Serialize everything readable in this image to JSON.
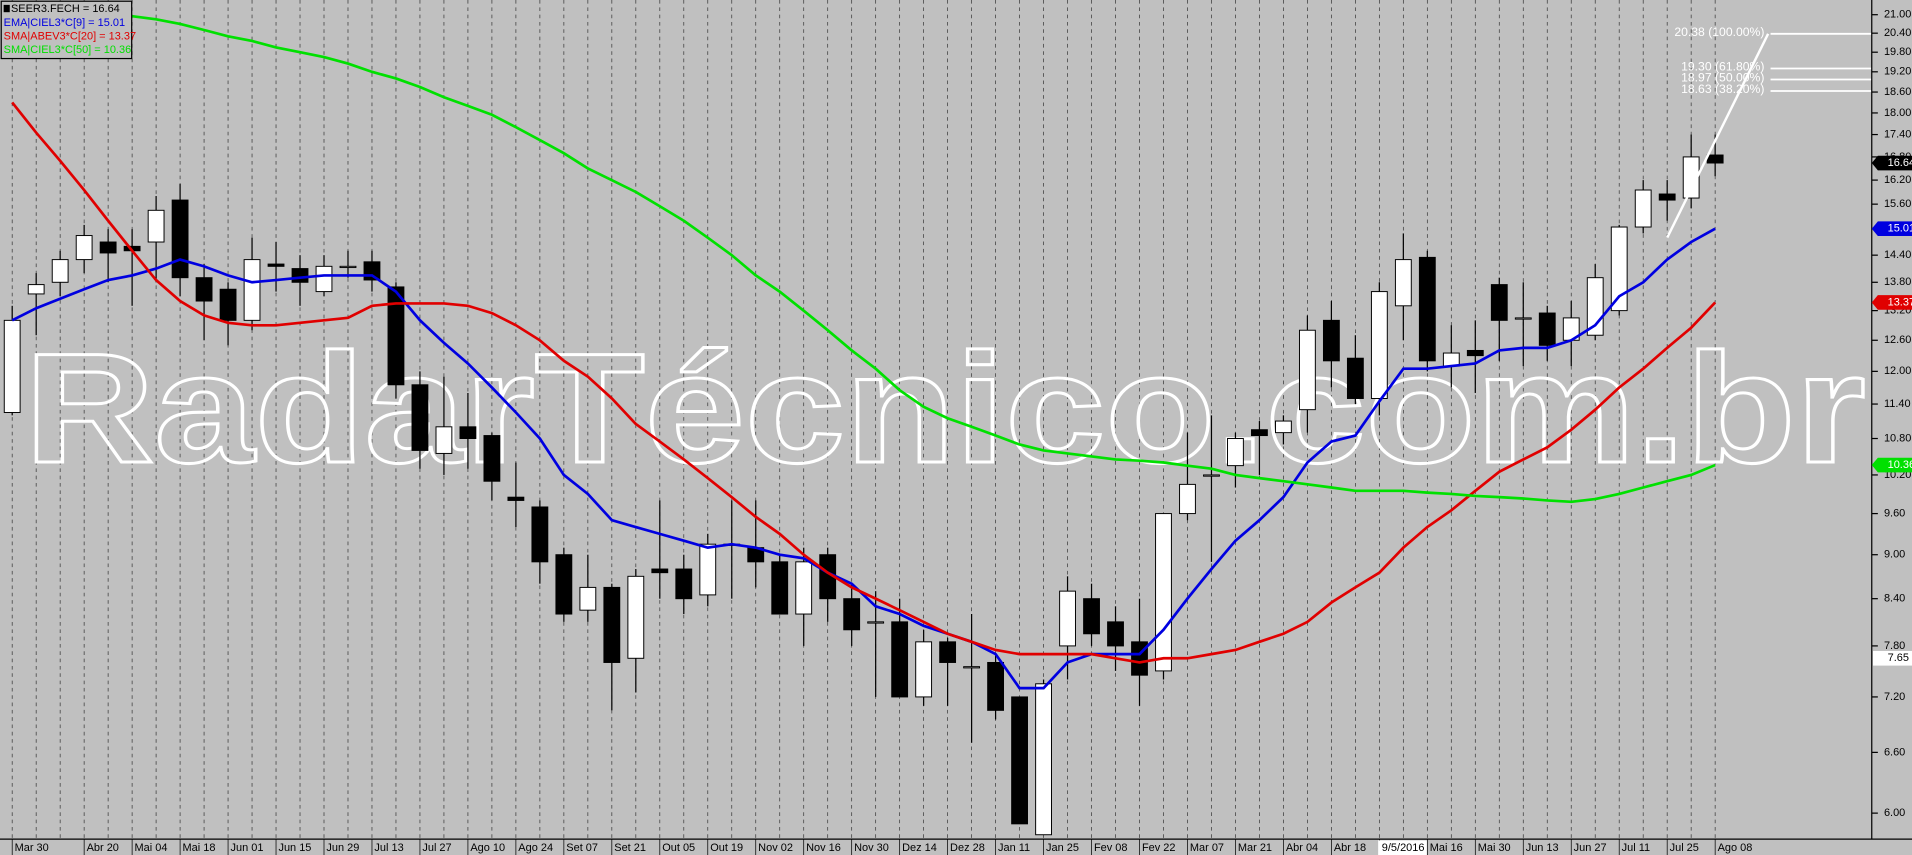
{
  "chart_data": {
    "type": "candlestick",
    "name": "SEER3.FECH = 16.64",
    "watermark": "RadarTécnico.com.br",
    "log_scale": true,
    "up_color": "#ffffff",
    "down_color": "#000000",
    "categories": [
      "Mar 30",
      null,
      null,
      "Abr 20",
      null,
      "Mai 04",
      null,
      "Mai 18",
      null,
      "Jun 01",
      null,
      "Jun 15",
      null,
      "Jun 29",
      null,
      "Jul 13",
      null,
      "Jul 27",
      null,
      "Ago 10",
      null,
      "Ago 24",
      null,
      "Set 07",
      null,
      "Set 21",
      null,
      "Out 05",
      null,
      "Out 19",
      null,
      "Nov 02",
      null,
      "Nov 16",
      null,
      "Nov 30",
      null,
      "Dez 14",
      null,
      "Dez 28",
      null,
      "Jan 11",
      null,
      "Jan 25",
      null,
      "Fev 08",
      null,
      "Fev 22",
      null,
      "Mar 07",
      null,
      "Mar 21",
      null,
      "Abr 04",
      null,
      "Abr 18",
      null,
      "9/5/2016",
      null,
      "Mai 16",
      null,
      "Mai 30",
      null,
      "Jun 13",
      null,
      "Jun 27",
      null,
      "Jul 11",
      null,
      "Jul 25",
      null,
      "Ago 08"
    ],
    "open": [
      11.25,
      13.55,
      13.8,
      14.3,
      14.7,
      14.6,
      14.7,
      15.7,
      13.9,
      13.65,
      13.0,
      14.2,
      14.1,
      13.6,
      14.15,
      14.25,
      13.7,
      11.75,
      10.55,
      11.0,
      10.85,
      9.85,
      9.7,
      9.0,
      8.25,
      8.55,
      7.65,
      8.8,
      8.8,
      8.45,
      9.15,
      9.1,
      8.9,
      8.2,
      9.0,
      8.4,
      8.1,
      8.1,
      7.2,
      7.85,
      7.55,
      7.6,
      7.2,
      5.8,
      7.8,
      8.4,
      8.1,
      7.85,
      7.5,
      9.6,
      10.2,
      10.35,
      10.95,
      10.9,
      11.3,
      13.0,
      12.25,
      11.5,
      13.3,
      14.35,
      12.1,
      12.4,
      13.75,
      13.05,
      13.15,
      12.6,
      12.7,
      13.2,
      15.05,
      15.85,
      15.75,
      16.85
    ],
    "high": [
      13.3,
      14.0,
      14.5,
      15.1,
      15.0,
      15.0,
      15.8,
      16.1,
      14.2,
      13.8,
      14.8,
      14.7,
      14.4,
      14.4,
      14.5,
      14.5,
      13.8,
      12.0,
      11.9,
      11.6,
      10.9,
      10.4,
      9.8,
      9.1,
      9.0,
      8.6,
      8.8,
      9.8,
      9.0,
      9.3,
      9.8,
      9.8,
      9.0,
      9.1,
      9.1,
      8.6,
      8.5,
      8.4,
      8.0,
      7.9,
      8.2,
      7.7,
      7.2,
      7.4,
      8.7,
      8.6,
      8.3,
      8.4,
      9.6,
      10.9,
      11.2,
      10.9,
      11.1,
      11.2,
      13.1,
      13.4,
      12.7,
      13.8,
      14.9,
      14.5,
      12.9,
      13.0,
      13.9,
      13.8,
      13.3,
      13.4,
      14.2,
      15.1,
      16.2,
      16.2,
      17.4,
      17.4
    ],
    "low": [
      11.2,
      12.7,
      13.5,
      14.0,
      13.8,
      13.3,
      13.8,
      13.5,
      12.6,
      12.5,
      12.8,
      13.6,
      13.3,
      13.5,
      13.9,
      13.6,
      11.5,
      10.3,
      10.2,
      10.3,
      9.8,
      9.4,
      8.6,
      8.1,
      8.1,
      7.05,
      7.25,
      8.4,
      8.2,
      8.3,
      8.4,
      8.55,
      8.2,
      7.8,
      8.1,
      7.8,
      7.2,
      7.2,
      7.1,
      7.1,
      6.7,
      6.95,
      5.9,
      5.8,
      7.4,
      7.8,
      7.5,
      7.1,
      7.4,
      9.5,
      8.9,
      10.0,
      10.2,
      10.7,
      10.9,
      11.7,
      11.4,
      11.2,
      12.6,
      12.0,
      11.7,
      11.6,
      12.2,
      12.1,
      12.2,
      12.1,
      12.6,
      13.1,
      14.9,
      15.2,
      15.5,
      16.3
    ],
    "close": [
      13.0,
      13.75,
      14.3,
      14.85,
      14.45,
      14.5,
      15.45,
      13.9,
      13.4,
      13.0,
      14.3,
      14.15,
      13.8,
      14.15,
      14.15,
      13.85,
      11.75,
      10.6,
      11.0,
      10.8,
      10.1,
      9.8,
      8.9,
      8.2,
      8.55,
      7.6,
      8.7,
      8.75,
      8.4,
      9.15,
      9.15,
      8.9,
      8.2,
      8.9,
      8.4,
      8.0,
      8.1,
      7.2,
      7.85,
      7.6,
      7.55,
      7.05,
      5.9,
      7.35,
      8.5,
      7.95,
      7.8,
      7.45,
      9.6,
      10.05,
      10.2,
      10.8,
      10.85,
      11.1,
      12.8,
      12.2,
      11.5,
      13.6,
      14.3,
      12.2,
      12.35,
      12.3,
      13.0,
      13.05,
      12.5,
      13.05,
      13.9,
      15.05,
      15.95,
      15.7,
      16.8,
      16.64
    ],
    "overlays": [
      {
        "name": "EMA|CIEL3*C[9] = 15.01",
        "color": "#0000e0",
        "values": [
          13.0,
          13.25,
          13.45,
          13.65,
          13.85,
          13.95,
          14.1,
          14.3,
          14.15,
          13.95,
          13.8,
          13.85,
          13.9,
          13.95,
          13.95,
          13.95,
          13.6,
          13.0,
          12.55,
          12.15,
          11.7,
          11.25,
          10.8,
          10.2,
          9.9,
          9.5,
          9.4,
          9.3,
          9.2,
          9.1,
          9.15,
          9.1,
          9.0,
          8.95,
          8.75,
          8.6,
          8.3,
          8.2,
          8.05,
          7.95,
          7.85,
          7.7,
          7.3,
          7.3,
          7.6,
          7.7,
          7.7,
          7.7,
          8.0,
          8.4,
          8.8,
          9.2,
          9.5,
          9.85,
          10.4,
          10.75,
          10.85,
          11.45,
          12.05,
          12.05,
          12.1,
          12.15,
          12.4,
          12.45,
          12.45,
          12.6,
          12.9,
          13.5,
          13.8,
          14.3,
          14.7,
          15.01
        ]
      },
      {
        "name": "SMA|ABEV3*C[20] = 13.37",
        "color": "#e00000",
        "values": [
          18.3,
          17.45,
          16.7,
          15.95,
          15.2,
          14.5,
          13.85,
          13.4,
          13.1,
          12.95,
          12.9,
          12.9,
          12.95,
          13.0,
          13.05,
          13.3,
          13.35,
          13.35,
          13.35,
          13.3,
          13.15,
          12.9,
          12.6,
          12.2,
          11.9,
          11.5,
          11.05,
          10.75,
          10.45,
          10.15,
          9.85,
          9.55,
          9.3,
          9.0,
          8.75,
          8.55,
          8.4,
          8.25,
          8.1,
          7.95,
          7.85,
          7.75,
          7.7,
          7.7,
          7.7,
          7.7,
          7.65,
          7.6,
          7.65,
          7.65,
          7.7,
          7.75,
          7.85,
          7.95,
          8.1,
          8.35,
          8.55,
          8.75,
          9.1,
          9.4,
          9.65,
          9.95,
          10.25,
          10.45,
          10.65,
          10.95,
          11.3,
          11.7,
          12.05,
          12.45,
          12.85,
          13.37
        ]
      },
      {
        "name": "SMA|CIEL3*C[50] = 10.36",
        "color": "#00e000",
        "values": [
          21.2,
          21.15,
          21.1,
          21.05,
          21.0,
          20.95,
          20.85,
          20.7,
          20.5,
          20.3,
          20.15,
          19.95,
          19.8,
          19.65,
          19.45,
          19.2,
          19.0,
          18.75,
          18.45,
          18.2,
          17.95,
          17.6,
          17.25,
          16.9,
          16.5,
          16.2,
          15.9,
          15.55,
          15.2,
          14.8,
          14.4,
          13.95,
          13.6,
          13.2,
          12.8,
          12.4,
          12.05,
          11.65,
          11.35,
          11.15,
          11.0,
          10.85,
          10.7,
          10.6,
          10.55,
          10.5,
          10.45,
          10.43,
          10.4,
          10.35,
          10.3,
          10.2,
          10.15,
          10.1,
          10.05,
          10.0,
          9.95,
          9.95,
          9.95,
          9.92,
          9.9,
          9.87,
          9.85,
          9.83,
          9.8,
          9.78,
          9.82,
          9.9,
          10.0,
          10.1,
          10.2,
          10.36
        ]
      }
    ],
    "fibonacci": {
      "color": "#ffffff",
      "start": 14.8,
      "levels": [
        {
          "value": 20.38,
          "label": "20.38 (100.00%)"
        },
        {
          "value": 19.3,
          "label": "19.30 (61.80%)"
        },
        {
          "value": 18.97,
          "label": "18.97 (50.00%)"
        },
        {
          "value": 18.63,
          "label": "18.63 (38.20%)"
        }
      ]
    },
    "cursor_x_index": 57,
    "cursor_y": {
      "value": 7.65,
      "label": "7.65"
    },
    "ylim": [
      5.76,
      21.49
    ],
    "yticks": [
      {
        "value": 21,
        "label": "21.00"
      },
      {
        "value": 20.4,
        "label": "20.40"
      },
      {
        "value": 19.8,
        "label": "19.80"
      },
      {
        "value": 19.2,
        "label": "19.20"
      },
      {
        "value": 18.6,
        "label": "18.60"
      },
      {
        "value": 18,
        "label": "18.00"
      },
      {
        "value": 17.4,
        "label": "17.40"
      },
      {
        "value": 16.8,
        "label": "16.80"
      },
      {
        "value": 16.2,
        "label": "16.20"
      },
      {
        "value": 15.6,
        "label": "15.60"
      },
      {
        "value": 14.4,
        "label": "14.40"
      },
      {
        "value": 13.8,
        "label": "13.80"
      },
      {
        "value": 13.2,
        "label": "13.20"
      },
      {
        "value": 12.6,
        "label": "12.60"
      },
      {
        "value": 12,
        "label": "12.00"
      },
      {
        "value": 11.4,
        "label": "11.40"
      },
      {
        "value": 10.8,
        "label": "10.80"
      },
      {
        "value": 10.2,
        "label": "10.20"
      },
      {
        "value": 9.6,
        "label": "9.60"
      },
      {
        "value": 9,
        "label": "9.00"
      },
      {
        "value": 8.4,
        "label": "8.40"
      },
      {
        "value": 7.8,
        "label": "7.80"
      },
      {
        "value": 7.2,
        "label": "7.20"
      },
      {
        "value": 6.6,
        "label": "6.60"
      },
      {
        "value": 6,
        "label": "6.00"
      }
    ]
  }
}
